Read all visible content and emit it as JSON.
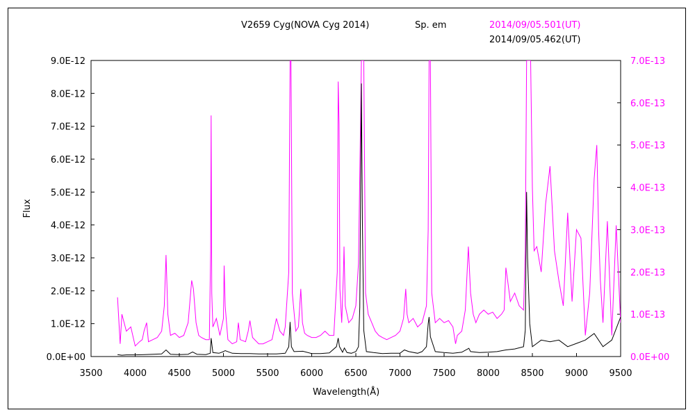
{
  "chart_data": {
    "type": "line",
    "title": "V2659 Cyg(NOVA Cyg 2014)",
    "subtitle": "Sp. em",
    "xlabel": "Wavelength(Å)",
    "ylabel": "Flux",
    "xlim": [
      3500,
      9500
    ],
    "ylim_left": [
      0,
      9e-12
    ],
    "ylim_right": [
      0,
      7e-13
    ],
    "x_ticks": [
      "3500",
      "4000",
      "4500",
      "5000",
      "5500",
      "6000",
      "6500",
      "7000",
      "7500",
      "8000",
      "8500",
      "9000",
      "9500"
    ],
    "y_left_ticks": [
      "0.0E+00",
      "1.0E-12",
      "2.0E-12",
      "3.0E-12",
      "4.0E-12",
      "5.0E-12",
      "6.0E-12",
      "7.0E-12",
      "8.0E-12",
      "9.0E-12"
    ],
    "y_right_ticks": [
      "0.0E+00",
      "1.0E-13",
      "2.0E-13",
      "3.0E-13",
      "4.0E-13",
      "5.0E-13",
      "6.0E-13",
      "7.0E-13"
    ],
    "grid": false,
    "series": [
      {
        "name": "2014/09/05.501(UT)",
        "color": "#ff00ff",
        "axis": "right",
        "x": [
          3800,
          3830,
          3850,
          3900,
          3950,
          4000,
          4050,
          4080,
          4100,
          4130,
          4150,
          4200,
          4250,
          4300,
          4330,
          4350,
          4370,
          4400,
          4450,
          4500,
          4550,
          4600,
          4640,
          4660,
          4690,
          4720,
          4750,
          4800,
          4840,
          4855,
          4861,
          4868,
          4880,
          4920,
          4960,
          5000,
          5008,
          5020,
          5050,
          5100,
          5150,
          5169,
          5190,
          5250,
          5280,
          5300,
          5330,
          5400,
          5450,
          5500,
          5550,
          5580,
          5600,
          5640,
          5680,
          5700,
          5740,
          5755,
          5765,
          5780,
          5820,
          5850,
          5876,
          5895,
          5920,
          5950,
          6000,
          6050,
          6100,
          6150,
          6200,
          6250,
          6290,
          6300,
          6310,
          6320,
          6340,
          6360,
          6366,
          6380,
          6420,
          6460,
          6500,
          6530,
          6550,
          6563,
          6575,
          6590,
          6610,
          6640,
          6680,
          6720,
          6760,
          6800,
          6850,
          6900,
          6950,
          7000,
          7040,
          7065,
          7080,
          7100,
          7150,
          7200,
          7250,
          7300,
          7320,
          7330,
          7345,
          7360,
          7400,
          7450,
          7500,
          7550,
          7600,
          7630,
          7650,
          7700,
          7740,
          7775,
          7800,
          7830,
          7860,
          7900,
          7950,
          8000,
          8050,
          8100,
          8150,
          8180,
          8200,
          8220,
          8250,
          8300,
          8350,
          8400,
          8420,
          8435,
          8446,
          8480,
          8500,
          8520,
          8550,
          8600,
          8650,
          8700,
          8750,
          8800,
          8850,
          8900,
          8950,
          9000,
          9050,
          9100,
          9150,
          9200,
          9230,
          9250,
          9270,
          9300,
          9350,
          9400,
          9450,
          9500
        ],
        "y": [
          1.4e-13,
          3e-14,
          1e-13,
          6e-14,
          7e-14,
          2.5e-14,
          3.5e-14,
          4e-14,
          6e-14,
          8e-14,
          3.5e-14,
          4e-14,
          4.5e-14,
          6e-14,
          1.2e-13,
          2.4e-13,
          1e-13,
          5e-14,
          5.5e-14,
          4.5e-14,
          5e-14,
          8e-14,
          1.8e-13,
          1.6e-13,
          8e-14,
          5e-14,
          4.5e-14,
          4e-14,
          4e-14,
          2.5e-13,
          5.7e-13,
          1.5e-13,
          7e-14,
          9e-14,
          5e-14,
          9e-14,
          2.15e-13,
          1.2e-13,
          4e-14,
          3e-14,
          3.5e-14,
          8e-14,
          4e-14,
          3.5e-14,
          6e-14,
          8.5e-14,
          4.5e-14,
          3e-14,
          3e-14,
          3.5e-14,
          4e-14,
          7e-14,
          9e-14,
          6e-14,
          5e-14,
          7e-14,
          2e-13,
          7e-13,
          7e-13,
          1.5e-13,
          6e-14,
          7e-14,
          1.6e-13,
          8e-14,
          5.5e-14,
          5e-14,
          4.5e-14,
          4.5e-14,
          5e-14,
          6e-14,
          5e-14,
          5e-14,
          2e-13,
          6.5e-13,
          5.5e-13,
          1.6e-13,
          8e-14,
          2e-13,
          2.6e-13,
          1.2e-13,
          8e-14,
          9e-14,
          1.2e-13,
          2.2e-13,
          5e-13,
          7e-13,
          7e-13,
          7e-13,
          1.5e-13,
          1e-13,
          8e-14,
          6e-14,
          5e-14,
          4.5e-14,
          4e-14,
          4.5e-14,
          5e-14,
          6e-14,
          9e-14,
          1.6e-13,
          1e-13,
          8e-14,
          9e-14,
          7e-14,
          8e-14,
          1.2e-13,
          3e-13,
          7e-13,
          7e-13,
          1.5e-13,
          8e-14,
          9e-14,
          8e-14,
          8.5e-14,
          7e-14,
          3e-14,
          5e-14,
          6e-14,
          1.1e-13,
          2.6e-13,
          1.5e-13,
          1e-13,
          8e-14,
          1e-13,
          1.1e-13,
          1e-13,
          1.05e-13,
          9e-14,
          1e-13,
          1.1e-13,
          2.1e-13,
          1.8e-13,
          1.3e-13,
          1.5e-13,
          1.2e-13,
          1.1e-13,
          2.5e-13,
          7e-13,
          7e-13,
          7e-13,
          4e-13,
          2.5e-13,
          2.6e-13,
          2e-13,
          3.6e-13,
          4.5e-13,
          2.5e-13,
          1.8e-13,
          1.2e-13,
          3.4e-13,
          1.3e-13,
          3e-13,
          2.8e-13,
          5e-14,
          1.5e-13,
          4.2e-13,
          5e-13,
          3e-13,
          1.8e-13,
          8e-14,
          3.2e-13,
          5e-14,
          3.1e-13,
          8e-14
        ]
      },
      {
        "name": "2014/09/05.462(UT)",
        "color": "#000000",
        "axis": "left",
        "x": [
          3800,
          3850,
          3900,
          4000,
          4100,
          4200,
          4300,
          4350,
          4400,
          4500,
          4600,
          4650,
          4700,
          4800,
          4850,
          4861,
          4880,
          4950,
          5000,
          5020,
          5100,
          5200,
          5300,
          5400,
          5500,
          5600,
          5700,
          5740,
          5755,
          5770,
          5800,
          5900,
          6000,
          6100,
          6200,
          6280,
          6300,
          6315,
          6350,
          6370,
          6400,
          6450,
          6500,
          6530,
          6545,
          6563,
          6575,
          6590,
          6620,
          6700,
          6800,
          6900,
          7000,
          7050,
          7100,
          7200,
          7250,
          7300,
          7320,
          7330,
          7345,
          7400,
          7500,
          7600,
          7700,
          7780,
          7800,
          7900,
          8000,
          8100,
          8200,
          8300,
          8400,
          8420,
          8435,
          8446,
          8470,
          8500,
          8550,
          8600,
          8700,
          8800,
          8900,
          9000,
          9100,
          9200,
          9300,
          9400,
          9500
        ],
        "y": [
          6e-14,
          4e-14,
          5e-14,
          5e-14,
          6e-14,
          7e-14,
          8e-14,
          2e-13,
          7e-14,
          6e-14,
          7e-14,
          1.4e-13,
          7e-14,
          6e-14,
          1e-13,
          5.6e-13,
          1.2e-13,
          1e-13,
          1.5e-13,
          1.8e-13,
          1e-13,
          9e-14,
          9e-14,
          8e-14,
          8e-14,
          8e-14,
          1e-13,
          3e-13,
          1.05e-12,
          3e-13,
          1.5e-13,
          1.6e-13,
          9e-14,
          9e-14,
          1.1e-13,
          3e-13,
          5.6e-13,
          3e-13,
          1.3e-13,
          2.6e-13,
          1.2e-13,
          1e-13,
          1.5e-13,
          3e-13,
          1.5e-12,
          8.3e-12,
          4e-12,
          8e-13,
          1.5e-13,
          1.2e-13,
          9e-14,
          1e-13,
          1e-13,
          2e-13,
          1.5e-13,
          1e-13,
          1.5e-13,
          3e-13,
          1e-12,
          1.2e-12,
          6e-13,
          1.5e-13,
          1.2e-13,
          1e-13,
          1.3e-13,
          2.5e-13,
          1.5e-13,
          1.2e-13,
          1.3e-13,
          1.5e-13,
          2e-13,
          2.3e-13,
          3e-13,
          8e-13,
          5e-12,
          3e-12,
          1e-12,
          3e-13,
          4e-13,
          5e-13,
          4.5e-13,
          5e-13,
          3e-13,
          4e-13,
          5e-13,
          7e-13,
          3e-13,
          5e-13,
          1.2e-12
        ]
      }
    ]
  }
}
